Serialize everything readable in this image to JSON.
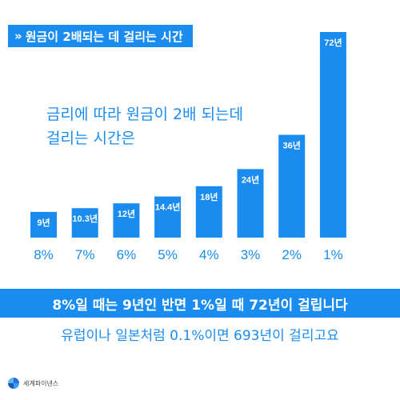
{
  "header": {
    "chevron": "»",
    "title": "원금이 2배되는 데 걸리는 시간"
  },
  "intro": {
    "line1": "금리에 따라 원금이 2배 되는데",
    "line2": "걸리는 시간은"
  },
  "chart_data": {
    "type": "bar",
    "categories": [
      "8%",
      "7%",
      "6%",
      "5%",
      "4%",
      "3%",
      "2%",
      "1%"
    ],
    "values": [
      9,
      10.3,
      12,
      14.4,
      18,
      24,
      36,
      72
    ],
    "data_labels": [
      "9년",
      "10.3년",
      "12년",
      "14.4년",
      "18년",
      "24년",
      "36년",
      "72년"
    ],
    "title": "",
    "xlabel": "",
    "ylabel": "",
    "bar_color": "#1a8cf0"
  },
  "highlight": "8%일 때는 9년인 반면 1%일 때 72년이 걸립니다",
  "subtext": "유럽이나 일본처럼 0.1%이면 693년이 걸리고요",
  "brand": {
    "logo_icon": "globe-icon",
    "name": "세계파이낸스"
  },
  "colors": {
    "accent": "#1a8cf0"
  }
}
